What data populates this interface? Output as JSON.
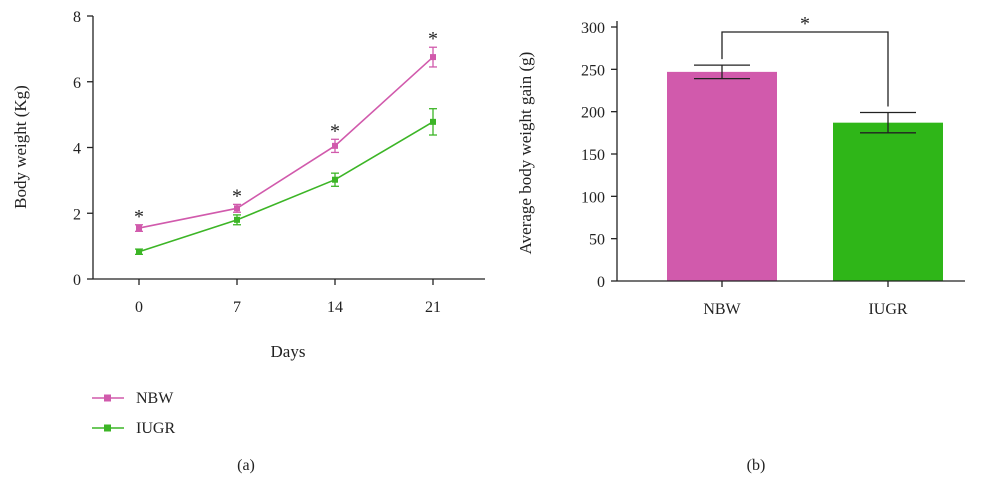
{
  "chart_data": [
    {
      "type": "line",
      "panel_label": "(a)",
      "xlabel": "Days",
      "ylabel": "Body weight (Kg)",
      "x": [
        0,
        7,
        14,
        21
      ],
      "x_tick_labels": [
        "0",
        "7",
        "14",
        "21"
      ],
      "ylim": [
        0,
        8
      ],
      "y_ticks": [
        0,
        2,
        4,
        6,
        8
      ],
      "y_tick_labels": [
        "0",
        "2",
        "4",
        "6",
        "8"
      ],
      "grid": false,
      "legend_placement": "bottom-left",
      "series": [
        {
          "name": "NBW",
          "color": "#d15aac",
          "marker": "square",
          "values": [
            1.55,
            2.15,
            4.05,
            6.75
          ],
          "err": [
            0.1,
            0.12,
            0.2,
            0.3
          ]
        },
        {
          "name": "IUGR",
          "color": "#3cb526",
          "marker": "square",
          "values": [
            0.83,
            1.8,
            3.02,
            4.78
          ],
          "err": [
            0.08,
            0.15,
            0.2,
            0.4
          ]
        }
      ],
      "annotations": [
        {
          "text": "*",
          "x": 0
        },
        {
          "text": "*",
          "x": 7
        },
        {
          "text": "*",
          "x": 14
        },
        {
          "text": "*",
          "x": 21
        }
      ]
    },
    {
      "type": "bar",
      "panel_label": "(b)",
      "ylabel": "Average body weight gain (g)",
      "categories": [
        "NBW",
        "IUGR"
      ],
      "values": [
        247,
        187
      ],
      "err": [
        8,
        12
      ],
      "colors": [
        "#d15aac",
        "#2fb618"
      ],
      "ylim": [
        0,
        300
      ],
      "y_ticks": [
        0,
        50,
        100,
        150,
        200,
        250,
        300
      ],
      "y_tick_labels": [
        "0",
        "50",
        "100",
        "150",
        "200",
        "250",
        "300"
      ],
      "grid": false,
      "significance": {
        "text": "*",
        "between": [
          "NBW",
          "IUGR"
        ]
      }
    }
  ]
}
